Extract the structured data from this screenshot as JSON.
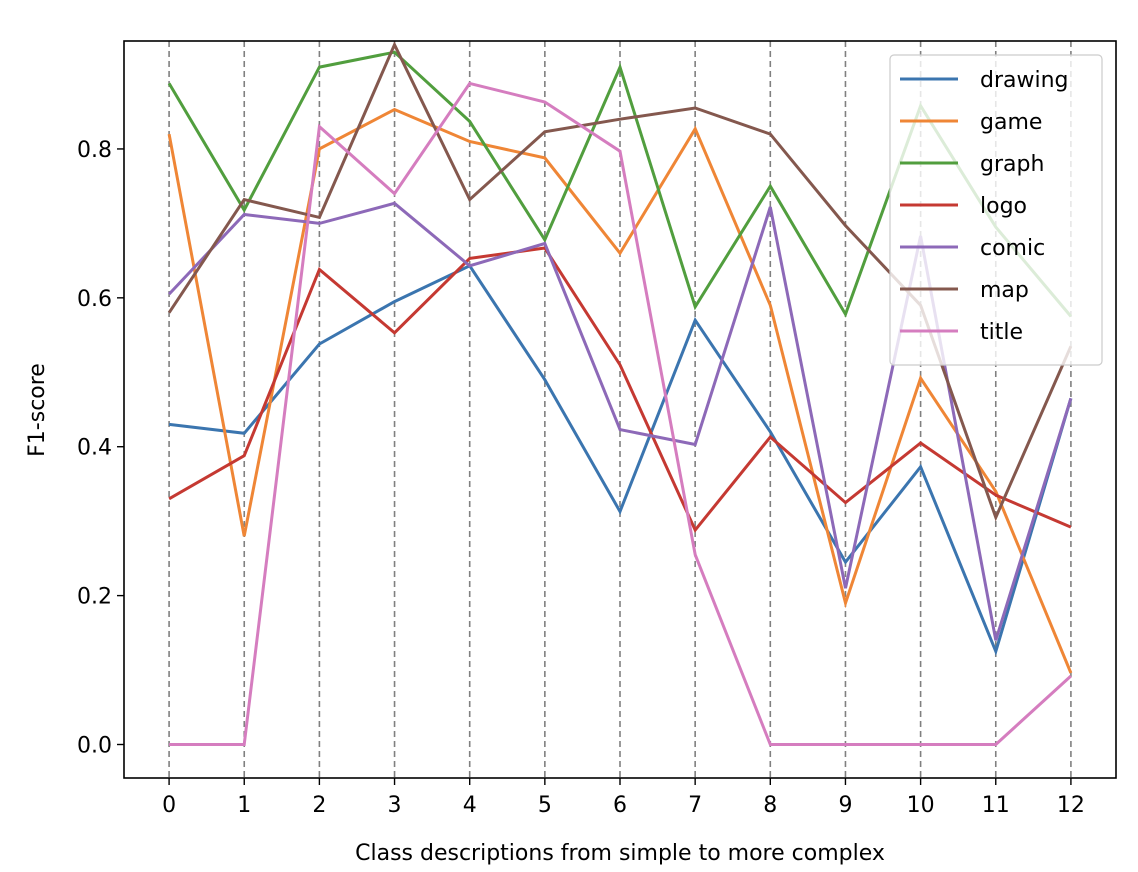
{
  "chart_data": {
    "type": "line",
    "xlabel": "Class descriptions from simple to more complex",
    "ylabel": "F1-score",
    "x": [
      0,
      1,
      2,
      3,
      4,
      5,
      6,
      7,
      8,
      9,
      10,
      11,
      12
    ],
    "x_ticks": [
      "0",
      "1",
      "2",
      "3",
      "4",
      "5",
      "6",
      "7",
      "8",
      "9",
      "10",
      "11",
      "12"
    ],
    "y_ticks": [
      "0.0",
      "0.2",
      "0.4",
      "0.6",
      "0.8"
    ],
    "xlim": [
      -0.6,
      12.6
    ],
    "ylim": [
      -0.045,
      0.945
    ],
    "grid": "vertical dashed at each x",
    "legend_position": "top-right",
    "series": [
      {
        "name": "drawing",
        "color": "#3b75af",
        "values": [
          0.43,
          0.418,
          0.538,
          0.595,
          0.643,
          0.49,
          0.313,
          0.57,
          0.42,
          0.245,
          0.373,
          0.125,
          0.465
        ]
      },
      {
        "name": "game",
        "color": "#ef8636",
        "values": [
          0.82,
          0.28,
          0.8,
          0.853,
          0.81,
          0.788,
          0.66,
          0.827,
          0.59,
          0.19,
          0.492,
          0.34,
          0.096
        ]
      },
      {
        "name": "graph",
        "color": "#519e3e",
        "values": [
          0.888,
          0.718,
          0.91,
          0.93,
          0.837,
          0.678,
          0.91,
          0.588,
          0.75,
          0.578,
          0.858,
          0.695,
          0.575
        ]
      },
      {
        "name": "logo",
        "color": "#c53932",
        "values": [
          0.33,
          0.388,
          0.638,
          0.553,
          0.653,
          0.667,
          0.51,
          0.288,
          0.413,
          0.325,
          0.405,
          0.335,
          0.292
        ]
      },
      {
        "name": "comic",
        "color": "#8d69b8",
        "values": [
          0.605,
          0.712,
          0.7,
          0.727,
          0.643,
          0.673,
          0.423,
          0.403,
          0.722,
          0.21,
          0.683,
          0.14,
          0.465
        ]
      },
      {
        "name": "map",
        "color": "#84584e",
        "values": [
          0.58,
          0.732,
          0.708,
          0.94,
          0.732,
          0.823,
          0.84,
          0.855,
          0.82,
          0.697,
          0.59,
          0.305,
          0.535
        ]
      },
      {
        "name": "title",
        "color": "#d57dbf",
        "values": [
          0.0,
          0.0,
          0.83,
          0.74,
          0.888,
          0.863,
          0.797,
          0.255,
          0.0,
          0.0,
          0.0,
          0.0,
          0.092
        ]
      }
    ]
  }
}
